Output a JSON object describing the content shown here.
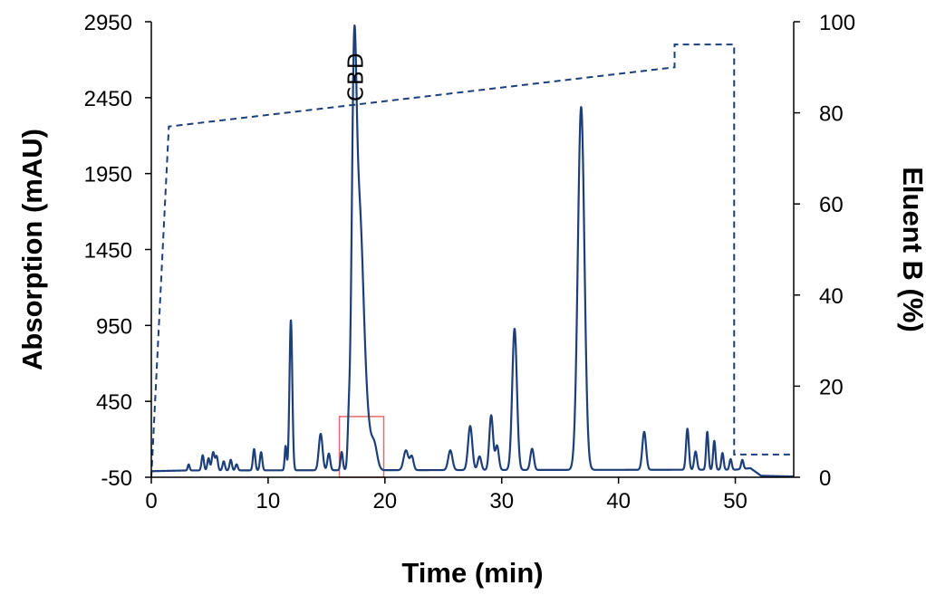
{
  "chart_data": {
    "type": "line",
    "xlabel": "Time (min)",
    "ylabel_left": "Absorption (mAU)",
    "ylabel_right": "Eluent B (%)",
    "x_ticks": [
      "0",
      "10",
      "20",
      "30",
      "40",
      "50"
    ],
    "y_left_ticks": [
      "-50",
      "450",
      "950",
      "1450",
      "1950",
      "2450",
      "2950"
    ],
    "y_right_ticks": [
      "0",
      "20",
      "40",
      "60",
      "80",
      "100"
    ],
    "xlim": [
      0,
      55
    ],
    "ylim_left": [
      -50,
      2950
    ],
    "ylim_right": [
      0,
      100
    ],
    "grid": false,
    "colors": {
      "trace": "#1c3f7a",
      "highlight": "#e06b6b",
      "axis": "#000000"
    },
    "annotations": [
      {
        "text": "CBD",
        "x": 17.5,
        "rotation": -90
      }
    ],
    "highlight_box": {
      "x0": 16.1,
      "x1": 19.9,
      "y0": -50,
      "y1": 350
    },
    "series": [
      {
        "axis": "left",
        "style": "solid",
        "baseline": -10,
        "baseline_rise": [
          [
            0,
            -10
          ],
          [
            3,
            -5
          ],
          [
            50,
            0
          ],
          [
            51.3,
            10
          ],
          [
            52.2,
            -40
          ],
          [
            55,
            -45
          ]
        ],
        "peaks": [
          [
            3.2,
            40,
            0.08
          ],
          [
            4.4,
            100,
            0.1
          ],
          [
            4.9,
            80,
            0.1
          ],
          [
            5.3,
            120,
            0.12
          ],
          [
            5.6,
            90,
            0.1
          ],
          [
            6.2,
            60,
            0.1
          ],
          [
            6.8,
            70,
            0.1
          ],
          [
            7.3,
            40,
            0.1
          ],
          [
            8.8,
            140,
            0.1
          ],
          [
            9.4,
            120,
            0.1
          ],
          [
            11.5,
            160,
            0.08
          ],
          [
            11.95,
            990,
            0.12
          ],
          [
            14.5,
            240,
            0.16
          ],
          [
            15.2,
            110,
            0.12
          ],
          [
            16.3,
            120,
            0.1
          ],
          [
            16.9,
            220,
            0.1
          ],
          [
            17.35,
            2180,
            0.2
          ],
          [
            17.8,
            1620,
            0.34
          ],
          [
            18.4,
            300,
            0.35
          ],
          [
            19.1,
            150,
            0.25
          ],
          [
            21.8,
            130,
            0.2
          ],
          [
            22.3,
            90,
            0.15
          ],
          [
            25.6,
            130,
            0.18
          ],
          [
            27.3,
            290,
            0.18
          ],
          [
            28.1,
            90,
            0.15
          ],
          [
            29.1,
            360,
            0.16
          ],
          [
            29.6,
            160,
            0.15
          ],
          [
            31.1,
            930,
            0.2
          ],
          [
            32.6,
            140,
            0.15
          ],
          [
            36.8,
            2390,
            0.28
          ],
          [
            42.2,
            250,
            0.16
          ],
          [
            45.9,
            270,
            0.12
          ],
          [
            46.6,
            120,
            0.12
          ],
          [
            47.6,
            250,
            0.1
          ],
          [
            48.2,
            190,
            0.1
          ],
          [
            48.9,
            110,
            0.1
          ],
          [
            49.6,
            70,
            0.1
          ],
          [
            50.6,
            60,
            0.1
          ]
        ]
      },
      {
        "axis": "right",
        "style": "dashed",
        "x": [
          0,
          1.5,
          44.8,
          44.8,
          49.9,
          49.9,
          55
        ],
        "y": [
          0,
          77,
          90,
          95,
          95,
          5,
          5
        ]
      }
    ]
  }
}
